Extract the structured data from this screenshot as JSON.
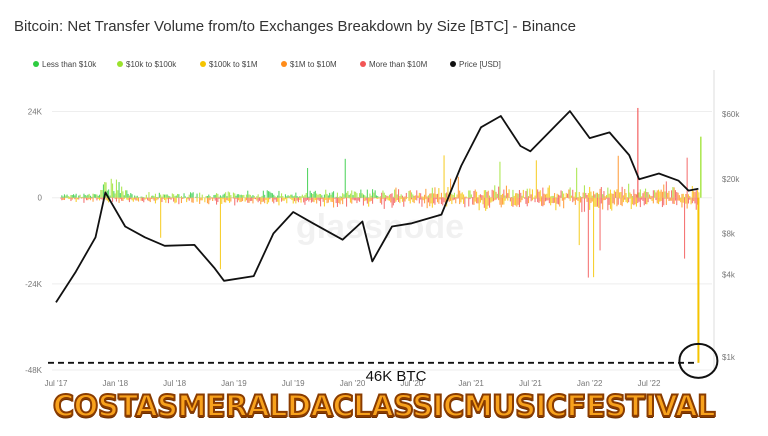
{
  "chart_data": {
    "type": "bar",
    "title": "Bitcoin: Net Transfer Volume from/to Exchanges Breakdown by Size [BTC] - Binance",
    "legend_position": "top-left",
    "x_ticks": [
      "Jul '17",
      "Jan '18",
      "Jul '18",
      "Jan '19",
      "Jul '19",
      "Jan '20",
      "Jul '20",
      "Jan '21",
      "Jul '21",
      "Jan '22",
      "Jul '22"
    ],
    "y_left_ticks": [
      "24K",
      "0",
      "-24K",
      "-48K"
    ],
    "y_left_values": [
      24000,
      0,
      -24000,
      -48000
    ],
    "ylim_left": [
      -48000,
      30000
    ],
    "y_right_ticks": [
      "$60k",
      "$20k",
      "$8k",
      "$4k",
      "$1k"
    ],
    "y_right_values": [
      60000,
      20000,
      8000,
      4000,
      1000
    ],
    "y_right_scale": "log",
    "series": [
      {
        "name": "Less than $10k",
        "color": "#2ecc40"
      },
      {
        "name": "$10k to $100k",
        "color": "#9be22d"
      },
      {
        "name": "$100k to $1M",
        "color": "#f5c400"
      },
      {
        "name": "$1M to $10M",
        "color": "#ff8c1a"
      },
      {
        "name": "More than $10M",
        "color": "#f25555"
      },
      {
        "name": "Price [USD]",
        "color": "#111111",
        "points": [
          [
            "2017-07",
            2500
          ],
          [
            "2017-09",
            4200
          ],
          [
            "2017-11",
            7500
          ],
          [
            "2017-12",
            16000
          ],
          [
            "2018-02",
            9000
          ],
          [
            "2018-04",
            7500
          ],
          [
            "2018-06",
            6500
          ],
          [
            "2018-09",
            6600
          ],
          [
            "2018-11",
            4500
          ],
          [
            "2018-12",
            3600
          ],
          [
            "2019-03",
            3900
          ],
          [
            "2019-05",
            8000
          ],
          [
            "2019-07",
            11500
          ],
          [
            "2019-09",
            9500
          ],
          [
            "2019-12",
            7200
          ],
          [
            "2020-02",
            9800
          ],
          [
            "2020-03",
            5000
          ],
          [
            "2020-05",
            9000
          ],
          [
            "2020-07",
            9500
          ],
          [
            "2020-10",
            11000
          ],
          [
            "2020-12",
            25000
          ],
          [
            "2021-02",
            48000
          ],
          [
            "2021-04",
            58000
          ],
          [
            "2021-06",
            35000
          ],
          [
            "2021-07",
            32000
          ],
          [
            "2021-09",
            45000
          ],
          [
            "2021-11",
            63000
          ],
          [
            "2022-01",
            40000
          ],
          [
            "2022-03",
            44000
          ],
          [
            "2022-05",
            30000
          ],
          [
            "2022-06",
            20000
          ],
          [
            "2022-08",
            22000
          ],
          [
            "2022-10",
            19500
          ],
          [
            "2022-11",
            16500
          ],
          [
            "2022-12",
            17000
          ]
        ]
      }
    ],
    "annotations": [
      {
        "text": "46K BTC",
        "value": -46000,
        "style": "dashed-line",
        "x": "2022-12"
      }
    ]
  },
  "watermark": "glassnode",
  "banner": {
    "text": "COSTASMERALDACLASSICMUSICFESTIVAL"
  }
}
